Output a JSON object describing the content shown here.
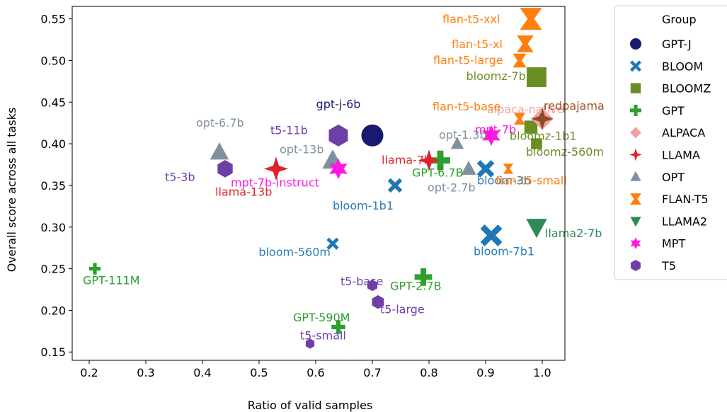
{
  "chart_data": {
    "type": "scatter",
    "xlabel": "Ratio of valid samples",
    "ylabel": "Overall score across all tasks",
    "xlim": [
      0.17,
      1.04
    ],
    "ylim": [
      0.14,
      0.565
    ],
    "xticks": [
      0.2,
      0.3,
      0.4,
      0.5,
      0.6,
      0.7,
      0.8,
      0.9,
      1.0
    ],
    "xtick_labels": [
      "0.2",
      "0.3",
      "0.4",
      "0.5",
      "0.6",
      "0.7",
      "0.8",
      "0.9",
      "1.0"
    ],
    "yticks": [
      0.15,
      0.2,
      0.25,
      0.3,
      0.35,
      0.4,
      0.45,
      0.5,
      0.55
    ],
    "ytick_labels": [
      "0.15",
      "0.20",
      "0.25",
      "0.30",
      "0.35",
      "0.40",
      "0.45",
      "0.50",
      "0.55"
    ],
    "grid": false,
    "legend": {
      "title": "Group",
      "placement": "outside-right-top",
      "entries": [
        {
          "name": "GPT-J",
          "marker": "circle",
          "color": "#191970"
        },
        {
          "name": "BLOOM",
          "marker": "x",
          "color": "#1f77b4"
        },
        {
          "name": "BLOOMZ",
          "marker": "square",
          "color": "#6b8e23"
        },
        {
          "name": "GPT",
          "marker": "plus",
          "color": "#2ca02c"
        },
        {
          "name": "ALPACA",
          "marker": "diamond",
          "color": "#f4a0a0"
        },
        {
          "name": "LLAMA",
          "marker": "star4",
          "color": "#e0202a"
        },
        {
          "name": "OPT",
          "marker": "triangle-up",
          "color": "#8190a0"
        },
        {
          "name": "FLAN-T5",
          "marker": "bowtie-x",
          "color": "#ff7f0e"
        },
        {
          "name": "LLAMA2",
          "marker": "triangle-down",
          "color": "#2e8b57"
        },
        {
          "name": "MPT",
          "marker": "star6",
          "color": "#ff19e0"
        },
        {
          "name": "T5",
          "marker": "hexagon",
          "color": "#6f3fa8"
        }
      ]
    },
    "series": [
      {
        "name": "GPT-J",
        "points": [
          {
            "x": 0.7,
            "y": 0.41,
            "label": "gpt-j-6b",
            "size": 1.0
          }
        ]
      },
      {
        "name": "BLOOM",
        "points": [
          {
            "x": 0.63,
            "y": 0.28,
            "label": "bloom-560m",
            "size": 0.35
          },
          {
            "x": 0.74,
            "y": 0.35,
            "label": "bloom-1b1",
            "size": 0.5
          },
          {
            "x": 0.9,
            "y": 0.37,
            "label": "bloom-3b",
            "size": 0.7
          },
          {
            "x": 0.91,
            "y": 0.29,
            "label": "bloom-7b1",
            "size": 1.0
          }
        ]
      },
      {
        "name": "BLOOMZ",
        "points": [
          {
            "x": 0.99,
            "y": 0.4,
            "label": "bloomz-560m",
            "size": 0.35
          },
          {
            "x": 0.98,
            "y": 0.42,
            "label": "bloomz-1b1",
            "size": 0.5
          },
          {
            "x": 0.99,
            "y": 0.48,
            "label": "bloomz-7b1",
            "size": 1.0
          }
        ]
      },
      {
        "name": "GPT",
        "points": [
          {
            "x": 0.21,
            "y": 0.25,
            "label": "GPT-111M",
            "size": 0.3
          },
          {
            "x": 0.64,
            "y": 0.18,
            "label": "GPT-590M",
            "size": 0.45
          },
          {
            "x": 0.79,
            "y": 0.24,
            "label": "GPT-2.7B",
            "size": 0.7
          },
          {
            "x": 0.82,
            "y": 0.38,
            "label": "GPT-6.7B",
            "size": 0.85
          }
        ]
      },
      {
        "name": "ALPACA",
        "points": [
          {
            "x": 1.0,
            "y": 0.43,
            "label": "alpaca-native",
            "size": 1.0
          }
        ]
      },
      {
        "name": "LLAMA",
        "points": [
          {
            "x": 0.8,
            "y": 0.38,
            "label": "llama-7b",
            "size": 0.85
          },
          {
            "x": 0.53,
            "y": 0.37,
            "label": "llama-13b",
            "size": 1.0
          }
        ]
      },
      {
        "name": "OPT",
        "points": [
          {
            "x": 0.85,
            "y": 0.4,
            "label": "opt-1.3b",
            "size": 0.45
          },
          {
            "x": 0.87,
            "y": 0.37,
            "label": "opt-2.7b",
            "size": 0.6
          },
          {
            "x": 0.43,
            "y": 0.39,
            "label": "opt-6.7b",
            "size": 0.85
          },
          {
            "x": 0.63,
            "y": 0.38,
            "label": "opt-13b",
            "size": 1.0
          }
        ]
      },
      {
        "name": "FLAN-T5",
        "points": [
          {
            "x": 0.94,
            "y": 0.37,
            "label": "flan-t5-small",
            "size": 0.2
          },
          {
            "x": 0.96,
            "y": 0.43,
            "label": "flan-t5-base",
            "size": 0.3
          },
          {
            "x": 0.96,
            "y": 0.5,
            "label": "flan-t5-large",
            "size": 0.45
          },
          {
            "x": 0.97,
            "y": 0.52,
            "label": "flan-t5-xl",
            "size": 0.65
          },
          {
            "x": 0.98,
            "y": 0.55,
            "label": "flan-t5-xxl",
            "size": 1.0
          }
        ]
      },
      {
        "name": "LLAMA2",
        "points": [
          {
            "x": 0.99,
            "y": 0.3,
            "label": "llama2-7b",
            "size": 1.0
          }
        ]
      },
      {
        "name": "MPT",
        "points": [
          {
            "x": 0.91,
            "y": 0.41,
            "label": "mpt-7b",
            "size": 0.85
          },
          {
            "x": 0.64,
            "y": 0.37,
            "label": "mpt-7b-instruct",
            "size": 0.85
          }
        ]
      },
      {
        "name": "T5",
        "points": [
          {
            "x": 0.59,
            "y": 0.16,
            "label": "t5-small",
            "size": 0.2
          },
          {
            "x": 0.7,
            "y": 0.23,
            "label": "t5-base",
            "size": 0.3
          },
          {
            "x": 0.71,
            "y": 0.21,
            "label": "t5-large",
            "size": 0.45
          },
          {
            "x": 0.44,
            "y": 0.37,
            "label": "t5-3b",
            "size": 0.7
          },
          {
            "x": 0.64,
            "y": 0.41,
            "label": "t5-11b",
            "size": 1.0
          }
        ]
      },
      {
        "name": "redpajama",
        "points": [
          {
            "x": 1.0,
            "y": 0.43,
            "label": "redpajama",
            "size": 0.9
          }
        ]
      }
    ]
  }
}
